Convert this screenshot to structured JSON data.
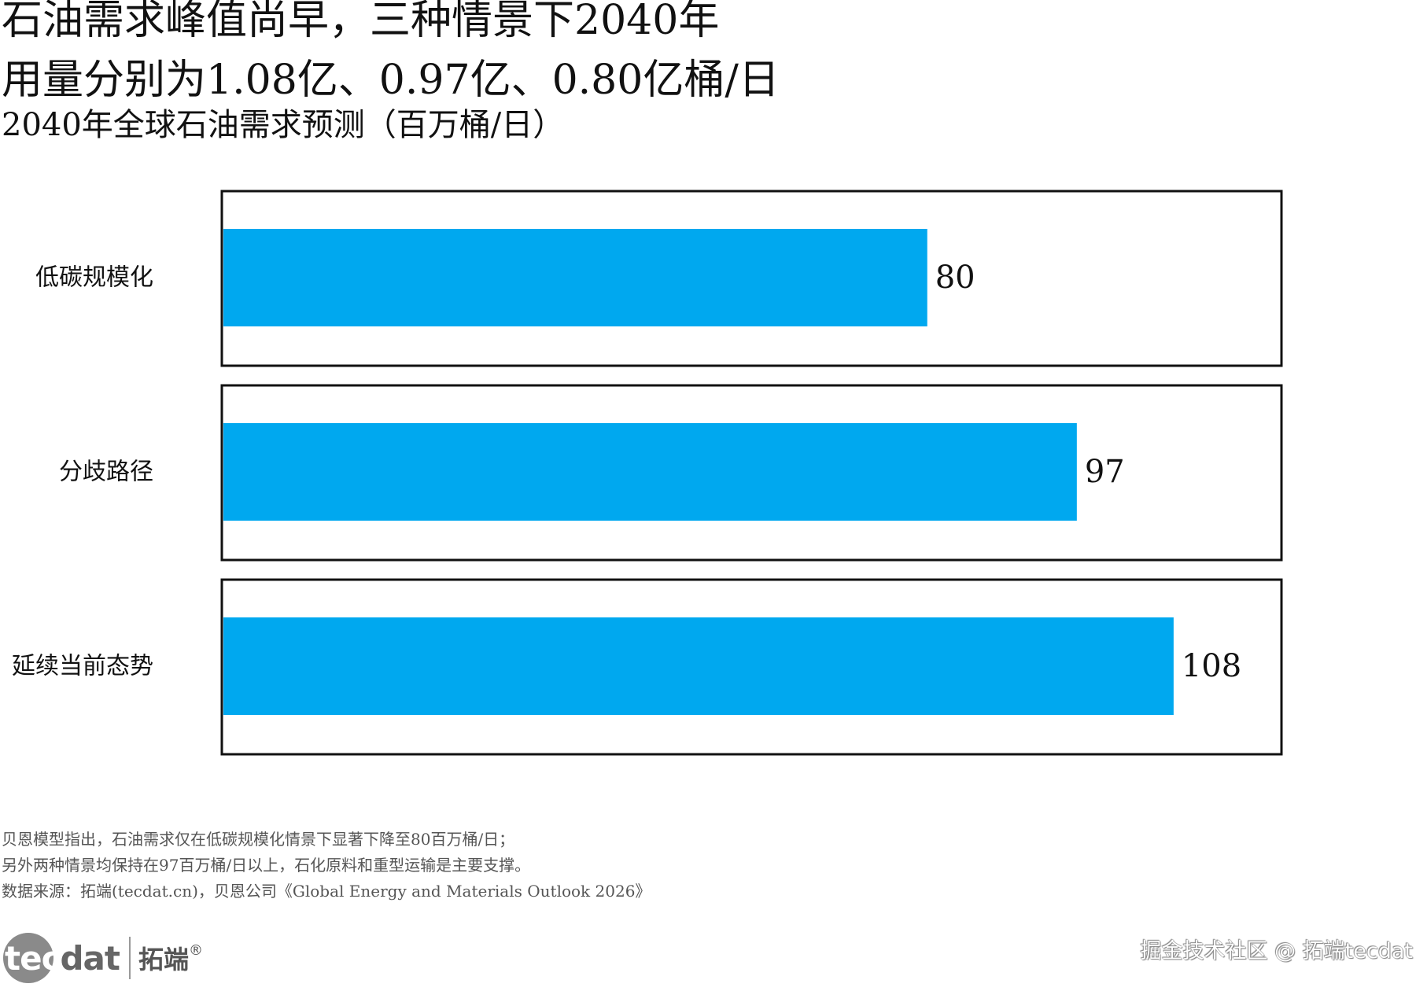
{
  "header": {
    "title_line1": "石油需求峰值尚早，三种情景下2040年",
    "title_line2": "用量分别为1.08亿、0.97亿、0.80亿桶/日",
    "subtitle": "2040年全球石油需求预测（百万桶/日）"
  },
  "chart_data": {
    "type": "bar",
    "orientation": "horizontal",
    "categories": [
      "低碳规模化",
      "分歧路径",
      "延续当前态势"
    ],
    "values": [
      80,
      97,
      108
    ],
    "value_labels": [
      "80",
      "97",
      "108"
    ],
    "bar_color": "#00a8ef",
    "grid": false,
    "legend": "none"
  },
  "notes": {
    "line1": "贝恩模型指出，石油需求仅在低碳规模化情景下显著下降至80百万桶/日；",
    "line2": "另外两种情景均保持在97百万桶/日以上，石化原料和重型运输是主要支撑。",
    "line3": "数据来源：拓端(tecdat.cn)，贝恩公司《Global Energy and Materials Outlook 2026》"
  },
  "logo": {
    "tec": "tec",
    "dat": "dat",
    "chinese": "拓端",
    "registered": "®"
  },
  "watermark": "掘金技术社区 @ 拓端tecdat"
}
